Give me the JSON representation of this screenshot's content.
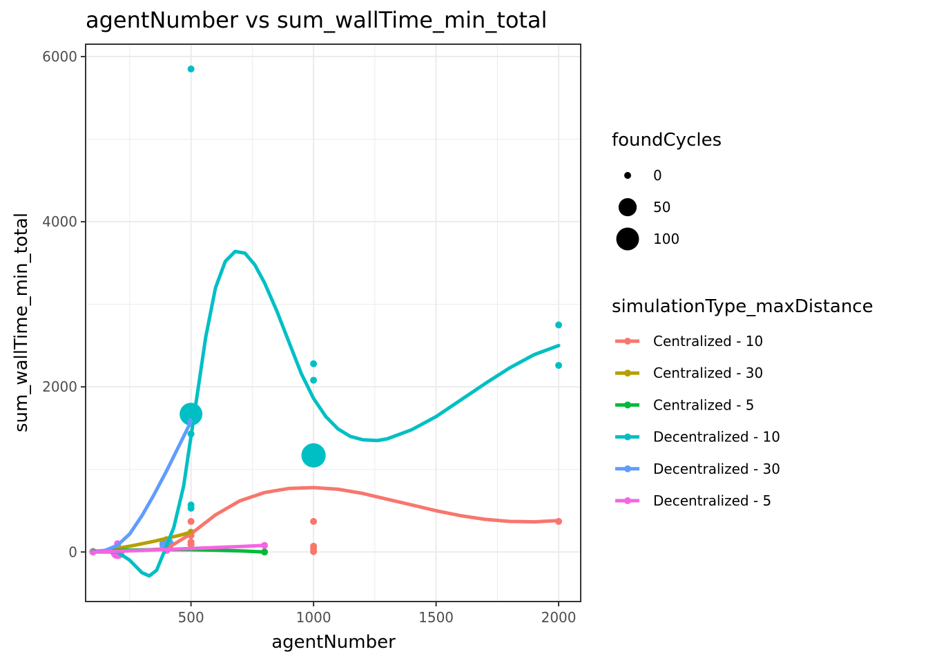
{
  "chart_data": {
    "type": "scatter",
    "title": "agentNumber  vs  sum_wallTime_min_total",
    "xlabel": "agentNumber",
    "ylabel": "sum_wallTime_min_total",
    "xlim": [
      70,
      2090
    ],
    "ylim": [
      -600,
      6150
    ],
    "x_ticks": [
      500,
      1000,
      1500,
      2000
    ],
    "y_ticks": [
      0,
      2000,
      4000,
      6000
    ],
    "grid": true,
    "smoothing": "loess curve per series",
    "size_legend": {
      "title": "foundCycles",
      "entries": [
        {
          "label": "0",
          "value": 0
        },
        {
          "label": "50",
          "value": 50
        },
        {
          "label": "100",
          "value": 100
        }
      ]
    },
    "color_legend": {
      "title": "simulationType_maxDistance",
      "placement": "right"
    },
    "series": [
      {
        "name": "Centralized - 10",
        "color": "#F8766D",
        "points": [
          {
            "x": 100,
            "y": 5,
            "cycles": 0
          },
          {
            "x": 200,
            "y": 10,
            "cycles": 0
          },
          {
            "x": 400,
            "y": 20,
            "cycles": 0
          },
          {
            "x": 500,
            "y": 370,
            "cycles": 0
          },
          {
            "x": 500,
            "y": 200,
            "cycles": 0
          },
          {
            "x": 500,
            "y": 120,
            "cycles": 0
          },
          {
            "x": 500,
            "y": 90,
            "cycles": 0
          },
          {
            "x": 1000,
            "y": 370,
            "cycles": 0
          },
          {
            "x": 1000,
            "y": 70,
            "cycles": 0
          },
          {
            "x": 1000,
            "y": 40,
            "cycles": 0
          },
          {
            "x": 1000,
            "y": 5,
            "cycles": 0
          },
          {
            "x": 2000,
            "y": 370,
            "cycles": 0
          }
        ],
        "smooth": [
          [
            100,
            0
          ],
          [
            300,
            20
          ],
          [
            400,
            40
          ],
          [
            500,
            220
          ],
          [
            600,
            450
          ],
          [
            700,
            620
          ],
          [
            800,
            720
          ],
          [
            900,
            770
          ],
          [
            1000,
            780
          ],
          [
            1100,
            760
          ],
          [
            1200,
            710
          ],
          [
            1300,
            640
          ],
          [
            1400,
            570
          ],
          [
            1500,
            500
          ],
          [
            1600,
            440
          ],
          [
            1700,
            395
          ],
          [
            1800,
            370
          ],
          [
            1900,
            365
          ],
          [
            2000,
            380
          ]
        ]
      },
      {
        "name": "Centralized - 30",
        "color": "#B79F00",
        "points": [
          {
            "x": 100,
            "y": 5,
            "cycles": 0
          },
          {
            "x": 200,
            "y": 60,
            "cycles": 0
          },
          {
            "x": 400,
            "y": 150,
            "cycles": 0
          },
          {
            "x": 500,
            "y": 240,
            "cycles": 0
          }
        ],
        "smooth": [
          [
            100,
            0
          ],
          [
            150,
            20
          ],
          [
            200,
            45
          ],
          [
            250,
            70
          ],
          [
            300,
            100
          ],
          [
            350,
            130
          ],
          [
            400,
            165
          ],
          [
            450,
            200
          ],
          [
            500,
            240
          ]
        ]
      },
      {
        "name": "Centralized - 5",
        "color": "#00BA38",
        "points": [
          {
            "x": 100,
            "y": 5,
            "cycles": 0
          },
          {
            "x": 200,
            "y": 10,
            "cycles": 0
          },
          {
            "x": 400,
            "y": 20,
            "cycles": 0
          },
          {
            "x": 800,
            "y": 0,
            "cycles": 0
          }
        ],
        "smooth": [
          [
            100,
            10
          ],
          [
            200,
            20
          ],
          [
            300,
            25
          ],
          [
            400,
            28
          ],
          [
            500,
            27
          ],
          [
            600,
            22
          ],
          [
            700,
            14
          ],
          [
            800,
            0
          ]
        ]
      },
      {
        "name": "Decentralized - 10",
        "color": "#00BFC4",
        "points": [
          {
            "x": 100,
            "y": 0,
            "cycles": 0
          },
          {
            "x": 200,
            "y": 20,
            "cycles": 0
          },
          {
            "x": 400,
            "y": 100,
            "cycles": 20
          },
          {
            "x": 400,
            "y": 60,
            "cycles": 0
          },
          {
            "x": 500,
            "y": 5850,
            "cycles": 0
          },
          {
            "x": 500,
            "y": 1670,
            "cycles": 100
          },
          {
            "x": 500,
            "y": 1430,
            "cycles": 0
          },
          {
            "x": 500,
            "y": 570,
            "cycles": 0
          },
          {
            "x": 500,
            "y": 530,
            "cycles": 0
          },
          {
            "x": 1000,
            "y": 2280,
            "cycles": 0
          },
          {
            "x": 1000,
            "y": 2080,
            "cycles": 0
          },
          {
            "x": 1000,
            "y": 1170,
            "cycles": 120
          },
          {
            "x": 2000,
            "y": 2750,
            "cycles": 0
          },
          {
            "x": 2000,
            "y": 2260,
            "cycles": 0
          }
        ],
        "smooth": [
          [
            100,
            0
          ],
          [
            200,
            0
          ],
          [
            250,
            -100
          ],
          [
            300,
            -250
          ],
          [
            330,
            -290
          ],
          [
            360,
            -220
          ],
          [
            390,
            0
          ],
          [
            430,
            300
          ],
          [
            470,
            800
          ],
          [
            500,
            1400
          ],
          [
            530,
            2000
          ],
          [
            560,
            2600
          ],
          [
            600,
            3200
          ],
          [
            640,
            3520
          ],
          [
            680,
            3640
          ],
          [
            720,
            3620
          ],
          [
            760,
            3480
          ],
          [
            800,
            3260
          ],
          [
            850,
            2920
          ],
          [
            900,
            2540
          ],
          [
            950,
            2160
          ],
          [
            1000,
            1860
          ],
          [
            1050,
            1640
          ],
          [
            1100,
            1490
          ],
          [
            1150,
            1400
          ],
          [
            1200,
            1360
          ],
          [
            1260,
            1350
          ],
          [
            1300,
            1370
          ],
          [
            1400,
            1480
          ],
          [
            1500,
            1640
          ],
          [
            1600,
            1840
          ],
          [
            1700,
            2040
          ],
          [
            1800,
            2230
          ],
          [
            1900,
            2390
          ],
          [
            2000,
            2500
          ]
        ]
      },
      {
        "name": "Decentralized - 30",
        "color": "#619CFF",
        "points": [
          {
            "x": 100,
            "y": 0,
            "cycles": 0
          },
          {
            "x": 200,
            "y": 80,
            "cycles": 0
          },
          {
            "x": 400,
            "y": 90,
            "cycles": 20
          },
          {
            "x": 500,
            "y": 1580,
            "cycles": 0
          }
        ],
        "smooth": [
          [
            100,
            0
          ],
          [
            150,
            20
          ],
          [
            200,
            80
          ],
          [
            250,
            220
          ],
          [
            300,
            440
          ],
          [
            350,
            700
          ],
          [
            400,
            980
          ],
          [
            450,
            1280
          ],
          [
            500,
            1580
          ]
        ]
      },
      {
        "name": "Decentralized - 5",
        "color": "#F564E3",
        "points": [
          {
            "x": 100,
            "y": 0,
            "cycles": 0
          },
          {
            "x": 200,
            "y": 100,
            "cycles": 0
          },
          {
            "x": 200,
            "y": 0,
            "cycles": 20
          },
          {
            "x": 400,
            "y": 20,
            "cycles": 0
          },
          {
            "x": 800,
            "y": 80,
            "cycles": 0
          }
        ],
        "smooth": [
          [
            100,
            0
          ],
          [
            200,
            10
          ],
          [
            300,
            20
          ],
          [
            400,
            30
          ],
          [
            500,
            42
          ],
          [
            600,
            54
          ],
          [
            700,
            66
          ],
          [
            800,
            80
          ]
        ]
      }
    ]
  }
}
